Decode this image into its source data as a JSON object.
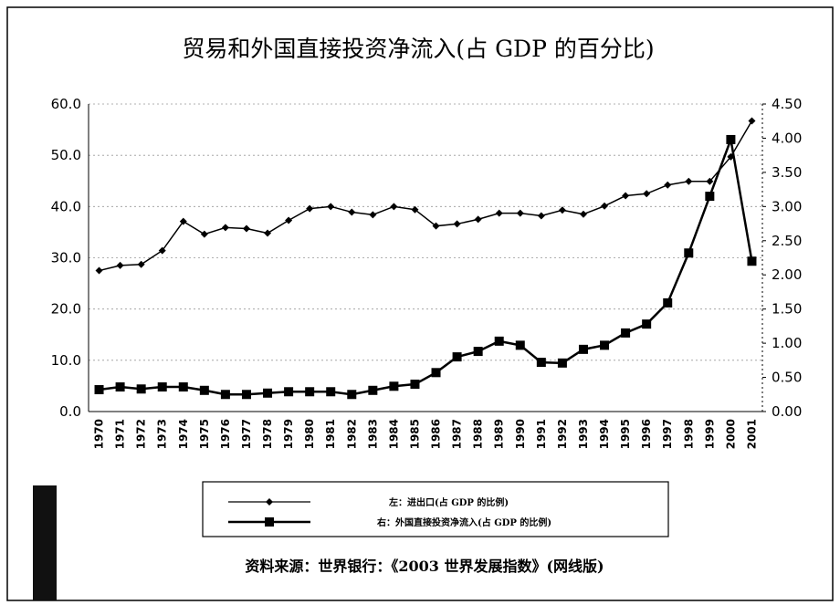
{
  "chart_data": {
    "type": "line",
    "title": "贸易和外国直接投资净流入(占 GDP 的百分比)",
    "source": "资料来源：世界银行：《2003 世界发展指数》(网线版)",
    "categories": [
      "1970",
      "1971",
      "1972",
      "1973",
      "1974",
      "1975",
      "1976",
      "1977",
      "1978",
      "1979",
      "1980",
      "1981",
      "1982",
      "1983",
      "1984",
      "1985",
      "1986",
      "1987",
      "1988",
      "1989",
      "1990",
      "1991",
      "1992",
      "1993",
      "1994",
      "1995",
      "1996",
      "1997",
      "1998",
      "1999",
      "2000",
      "2001"
    ],
    "series": [
      {
        "name": "左：进出口(占 GDP 的比例)",
        "color": "#000000",
        "marker": "diamond",
        "axis": "y",
        "values": [
          27.5,
          28.5,
          28.7,
          31.4,
          37.1,
          34.6,
          35.9,
          35.7,
          34.8,
          37.3,
          39.6,
          40.0,
          38.9,
          38.4,
          40.0,
          39.4,
          36.2,
          36.6,
          37.5,
          38.7,
          38.7,
          38.2,
          39.3,
          38.5,
          40.1,
          42.1,
          42.5,
          44.2,
          44.9,
          44.9,
          49.7,
          56.7
        ]
      },
      {
        "name": "右：外国直接投资净流入(占 GDP 的比例)",
        "color": "#000000",
        "marker": "square",
        "axis": "y2",
        "values": [
          0.32,
          0.36,
          0.33,
          0.36,
          0.36,
          0.31,
          0.25,
          0.25,
          0.27,
          0.29,
          0.29,
          0.29,
          0.25,
          0.31,
          0.37,
          0.4,
          0.57,
          0.8,
          0.88,
          1.03,
          0.97,
          0.72,
          0.71,
          0.91,
          0.97,
          1.15,
          1.28,
          1.59,
          2.32,
          3.15,
          3.98,
          2.2
        ]
      }
    ],
    "ylim": [
      0,
      60
    ],
    "yticks": [
      {
        "value": 0,
        "label": "0.0"
      },
      {
        "value": 10,
        "label": "10.0"
      },
      {
        "value": 20,
        "label": "20.0"
      },
      {
        "value": 30,
        "label": "30.0"
      },
      {
        "value": 40,
        "label": "40.0"
      },
      {
        "value": 50,
        "label": "50.0"
      },
      {
        "value": 60,
        "label": "60.0"
      }
    ],
    "y2lim": [
      0,
      4.5
    ],
    "y2ticks": [
      {
        "value": 0,
        "label": "0.00"
      },
      {
        "value": 0.5,
        "label": "0.50"
      },
      {
        "value": 1,
        "label": "1.00"
      },
      {
        "value": 1.5,
        "label": "1.50"
      },
      {
        "value": 2,
        "label": "2.00"
      },
      {
        "value": 2.5,
        "label": "2.50"
      },
      {
        "value": 3,
        "label": "3.00"
      },
      {
        "value": 3.5,
        "label": "3.50"
      },
      {
        "value": 4,
        "label": "4.00"
      },
      {
        "value": 4.5,
        "label": "4.50"
      }
    ],
    "grid": true
  }
}
